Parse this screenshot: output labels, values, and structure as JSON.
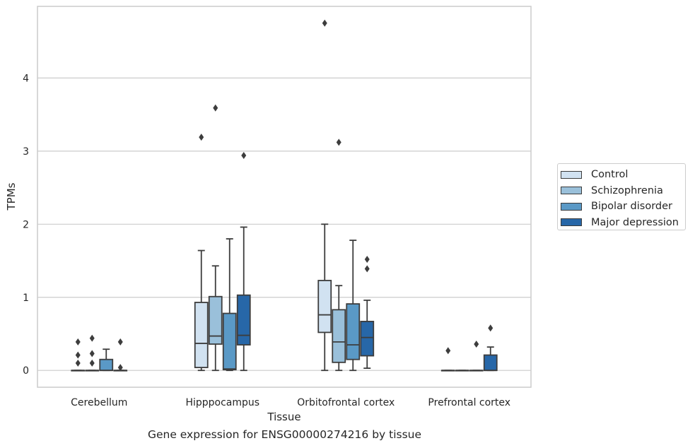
{
  "chart_data": {
    "type": "box",
    "xlabel": "Tissue",
    "ylabel": "TPMs",
    "caption": "Gene expression for ENSG00000274216 by tissue",
    "categories": [
      "Cerebellum",
      "Hipppocampus",
      "Orbitofrontal cortex",
      "Prefrontal cortex"
    ],
    "ylim": [
      -0.23,
      4.98
    ],
    "yticks": [
      0,
      1,
      2,
      3,
      4
    ],
    "grid": true,
    "legend_position": "right",
    "series": [
      {
        "name": "Control",
        "color": "#d1e2f1",
        "boxes": [
          {
            "q1": 0,
            "median": 0,
            "q3": 0,
            "whisker_low": 0,
            "whisker_high": 0,
            "outliers": [
              0.1,
              0.21,
              0.39
            ]
          },
          {
            "q1": 0.04,
            "median": 0.37,
            "q3": 0.93,
            "whisker_low": 0,
            "whisker_high": 1.64,
            "outliers": [
              3.19
            ]
          },
          {
            "q1": 0.52,
            "median": 0.76,
            "q3": 1.23,
            "whisker_low": 0,
            "whisker_high": 2.0,
            "outliers": [
              4.75
            ]
          },
          {
            "q1": 0,
            "median": 0,
            "q3": 0,
            "whisker_low": 0,
            "whisker_high": 0,
            "outliers": [
              0.27
            ]
          }
        ]
      },
      {
        "name": "Schizophrenia",
        "color": "#9ac0da",
        "boxes": [
          {
            "q1": 0,
            "median": 0,
            "q3": 0,
            "whisker_low": 0,
            "whisker_high": 0,
            "outliers": [
              0.1,
              0.23,
              0.44
            ]
          },
          {
            "q1": 0.36,
            "median": 0.47,
            "q3": 1.01,
            "whisker_low": 0,
            "whisker_high": 1.43,
            "outliers": [
              3.59
            ]
          },
          {
            "q1": 0.11,
            "median": 0.39,
            "q3": 0.83,
            "whisker_low": 0,
            "whisker_high": 1.16,
            "outliers": [
              3.12
            ]
          },
          {
            "q1": 0,
            "median": 0,
            "q3": 0,
            "whisker_low": 0,
            "whisker_high": 0,
            "outliers": []
          }
        ]
      },
      {
        "name": "Bipolar disorder",
        "color": "#5a99c6",
        "boxes": [
          {
            "q1": 0,
            "median": 0,
            "q3": 0.15,
            "whisker_low": 0,
            "whisker_high": 0.29,
            "outliers": []
          },
          {
            "q1": 0.01,
            "median": 0.02,
            "q3": 0.78,
            "whisker_low": 0,
            "whisker_high": 1.8,
            "outliers": []
          },
          {
            "q1": 0.15,
            "median": 0.35,
            "q3": 0.91,
            "whisker_low": 0,
            "whisker_high": 1.78,
            "outliers": []
          },
          {
            "q1": 0,
            "median": 0,
            "q3": 0,
            "whisker_low": 0,
            "whisker_high": 0,
            "outliers": [
              0.36
            ]
          }
        ]
      },
      {
        "name": "Major depression",
        "color": "#2767a8",
        "boxes": [
          {
            "q1": 0,
            "median": 0,
            "q3": 0,
            "whisker_low": 0,
            "whisker_high": 0,
            "outliers": [
              0.04,
              0.39
            ]
          },
          {
            "q1": 0.35,
            "median": 0.48,
            "q3": 1.03,
            "whisker_low": 0,
            "whisker_high": 1.96,
            "outliers": [
              2.94
            ]
          },
          {
            "q1": 0.2,
            "median": 0.45,
            "q3": 0.67,
            "whisker_low": 0.03,
            "whisker_high": 0.96,
            "outliers": [
              1.39,
              1.52
            ]
          },
          {
            "q1": 0,
            "median": 0,
            "q3": 0.21,
            "whisker_low": 0,
            "whisker_high": 0.32,
            "outliers": [
              0.58
            ]
          }
        ]
      }
    ]
  }
}
